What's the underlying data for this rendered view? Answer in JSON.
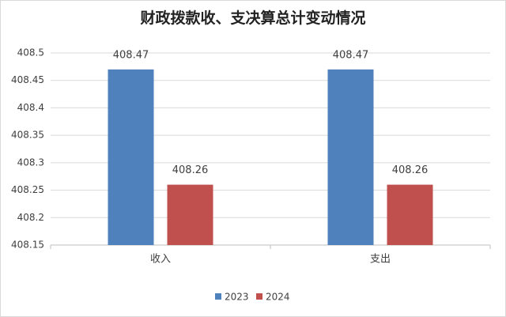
{
  "chart_data": {
    "type": "bar",
    "title": "财政拨款收、支决算总计变动情况",
    "categories": [
      "收入",
      "支出"
    ],
    "series": [
      {
        "name": "2023",
        "color": "#4f81bd",
        "values": [
          408.47,
          408.47
        ]
      },
      {
        "name": "2024",
        "color": "#c0504d",
        "values": [
          408.26,
          408.26
        ]
      }
    ],
    "ylim": [
      408.15,
      408.5
    ],
    "yticks": [
      408.15,
      408.2,
      408.25,
      408.3,
      408.35,
      408.4,
      408.45,
      408.5
    ],
    "grid": true,
    "legend": "bottom"
  }
}
